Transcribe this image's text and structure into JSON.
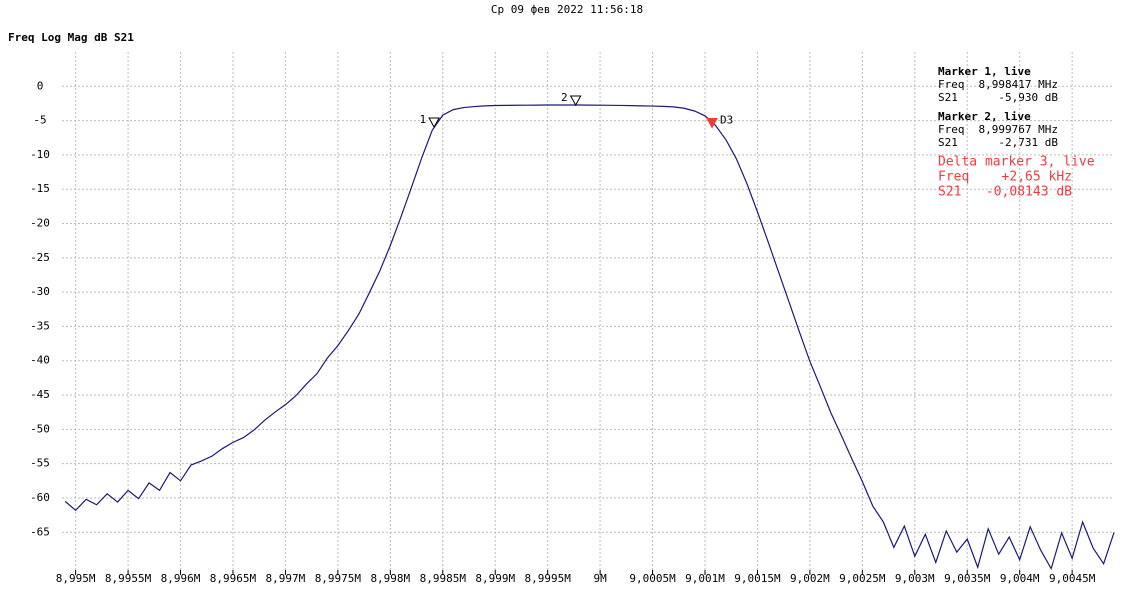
{
  "chart_data": {
    "type": "line",
    "title": "Ср 09 фев 2022 11:56:18",
    "subtitle": "Freq Log Mag dB S21",
    "grid": true,
    "xlim": [
      8.99487,
      9.00488
    ],
    "ylim": [
      -70.5,
      5
    ],
    "yticks": [
      0,
      -5,
      -10,
      -15,
      -20,
      -25,
      -30,
      -35,
      -40,
      -45,
      -50,
      -55,
      -60,
      -65
    ],
    "xticks": [
      {
        "value": 8.995,
        "label": "8,995M"
      },
      {
        "value": 8.9955,
        "label": "8,9955M"
      },
      {
        "value": 8.996,
        "label": "8,996M"
      },
      {
        "value": 8.9965,
        "label": "8,9965M"
      },
      {
        "value": 8.997,
        "label": "8,997M"
      },
      {
        "value": 8.9975,
        "label": "8,9975M"
      },
      {
        "value": 8.998,
        "label": "8,998M"
      },
      {
        "value": 8.9985,
        "label": "8,9985M"
      },
      {
        "value": 8.999,
        "label": "8,999M"
      },
      {
        "value": 8.9995,
        "label": "8,9995M"
      },
      {
        "value": 9,
        "label": "9M"
      },
      {
        "value": 9.0005,
        "label": "9,0005M"
      },
      {
        "value": 9.001,
        "label": "9,001M"
      },
      {
        "value": 9.0015,
        "label": "9,0015M"
      },
      {
        "value": 9.002,
        "label": "9,002M"
      },
      {
        "value": 9.0025,
        "label": "9,0025M"
      },
      {
        "value": 9.003,
        "label": "9,003M"
      },
      {
        "value": 9.0035,
        "label": "9,0035M"
      },
      {
        "value": 9.004,
        "label": "9,004M"
      },
      {
        "value": 9.0045,
        "label": "9,0045M"
      }
    ],
    "x": [
      8.9949,
      8.995,
      8.9951,
      8.9952,
      8.9953,
      8.9954,
      8.9955,
      8.9956,
      8.9957,
      8.9958,
      8.9959,
      8.996,
      8.9961,
      8.9962,
      8.9963,
      8.9964,
      8.9965,
      8.9966,
      8.9967,
      8.9968,
      8.9969,
      8.997,
      8.9971,
      8.9972,
      8.9973,
      8.9974,
      8.9975,
      8.9976,
      8.9977,
      8.9978,
      8.9979,
      8.998,
      8.9981,
      8.9982,
      8.9983,
      8.9984,
      8.9985,
      8.9986,
      8.9987,
      8.9988,
      8.9989,
      8.999,
      8.9991,
      8.9992,
      8.9993,
      8.9994,
      8.9995,
      8.9996,
      8.9997,
      8.9998,
      8.9999,
      9.0,
      9.0001,
      9.0002,
      9.0003,
      9.0004,
      9.0005,
      9.0006,
      9.0007,
      9.0008,
      9.0009,
      9.001,
      9.0011,
      9.0012,
      9.0013,
      9.0014,
      9.0015,
      9.0016,
      9.0017,
      9.0018,
      9.0019,
      9.002,
      9.0021,
      9.0022,
      9.0023,
      9.0024,
      9.0025,
      9.0026,
      9.0027,
      9.0028,
      9.0029,
      9.003,
      9.0031,
      9.0032,
      9.0033,
      9.0034,
      9.0035,
      9.0036,
      9.0037,
      9.0038,
      9.0039,
      9.004,
      9.0041,
      9.0042,
      9.0043,
      9.0044,
      9.0045,
      9.0046,
      9.0047,
      9.0048,
      9.0049
    ],
    "series": [
      {
        "color": "#1a1a7a",
        "values": [
          -60.5,
          -61.8,
          -60.2,
          -61.0,
          -59.4,
          -60.6,
          -58.9,
          -60.1,
          -57.8,
          -58.9,
          -56.3,
          -57.5,
          -55.2,
          -54.6,
          -53.9,
          -52.8,
          -51.9,
          -51.2,
          -50.1,
          -48.7,
          -47.5,
          -46.4,
          -45.1,
          -43.4,
          -41.9,
          -39.6,
          -37.8,
          -35.6,
          -33.2,
          -30.1,
          -26.9,
          -23.2,
          -19.1,
          -14.8,
          -10.4,
          -6.4,
          -4.2,
          -3.4,
          -3.1,
          -2.95,
          -2.85,
          -2.8,
          -2.78,
          -2.76,
          -2.75,
          -2.74,
          -2.73,
          -2.72,
          -2.73,
          -2.73,
          -2.74,
          -2.75,
          -2.77,
          -2.79,
          -2.82,
          -2.85,
          -2.88,
          -2.93,
          -3.0,
          -3.2,
          -3.6,
          -4.3,
          -5.7,
          -7.8,
          -10.6,
          -14.2,
          -18.3,
          -22.6,
          -27.0,
          -31.4,
          -35.8,
          -40.1,
          -43.8,
          -47.6,
          -50.9,
          -54.3,
          -57.6,
          -61.2,
          -63.5,
          -67.2,
          -64.1,
          -68.5,
          -65.3,
          -69.4,
          -64.8,
          -67.9,
          -66.0,
          -70.1,
          -64.5,
          -68.2,
          -65.7,
          -69.0,
          -64.2,
          -67.6,
          -70.3,
          -65.1,
          -68.8,
          -63.5,
          -67.3,
          -69.6,
          -65.0
        ]
      }
    ],
    "markers": [
      {
        "label": "1",
        "x": 8.998417,
        "value": -5.93,
        "color": "#000000",
        "filled": false
      },
      {
        "label": "2",
        "x": 8.999767,
        "value": -2.731,
        "color": "#000000",
        "filled": false
      },
      {
        "label": "D3",
        "x": 9.001067,
        "value": -6.011,
        "color": "#f03c3c",
        "filled": true
      }
    ],
    "marker_info": [
      {
        "title": "Marker 1, live",
        "color": "#000000",
        "rows": [
          [
            "Freq",
            "8,998417 MHz"
          ],
          [
            "S21",
            "-5,930 dB"
          ]
        ]
      },
      {
        "title": "Marker 2, live",
        "color": "#000000",
        "rows": [
          [
            "Freq",
            "8,999767 MHz"
          ],
          [
            "S21",
            "-2,731 dB"
          ]
        ]
      },
      {
        "title": "Delta marker 3, live",
        "color": "#f03c3c",
        "big": true,
        "rows": [
          [
            "Freq",
            "+2,65 kHz"
          ],
          [
            "S21",
            "-0,08143 dB"
          ]
        ]
      }
    ]
  }
}
